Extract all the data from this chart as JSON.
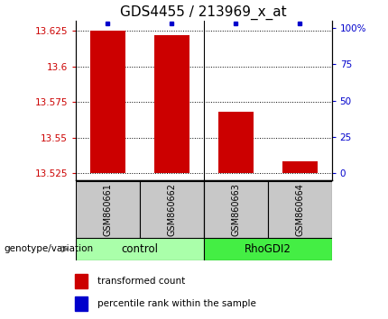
{
  "title": "GDS4455 / 213969_x_at",
  "samples": [
    "GSM860661",
    "GSM860662",
    "GSM860663",
    "GSM860664"
  ],
  "transformed_counts": [
    13.625,
    13.622,
    13.568,
    13.533
  ],
  "percentile_ranks": [
    100,
    100,
    100,
    100
  ],
  "ylim_left": [
    13.52,
    13.63
  ],
  "yticks_left": [
    13.525,
    13.55,
    13.575,
    13.6,
    13.625
  ],
  "yticks_right": [
    0,
    25,
    50,
    75,
    100
  ],
  "ytick_labels_right": [
    "0",
    "25",
    "50",
    "75",
    "100%"
  ],
  "groups": [
    {
      "name": "control",
      "samples": [
        0,
        1
      ],
      "color": "#aaffaa"
    },
    {
      "name": "RhoGDI2",
      "samples": [
        2,
        3
      ],
      "color": "#44ee44"
    }
  ],
  "bar_color": "#cc0000",
  "dot_color": "#0000cc",
  "bar_width": 0.55,
  "baseline": 13.525,
  "legend_items": [
    {
      "label": "transformed count",
      "color": "#cc0000"
    },
    {
      "label": "percentile rank within the sample",
      "color": "#0000cc"
    }
  ],
  "title_fontsize": 11,
  "tick_fontsize": 7.5,
  "sample_label_fontsize": 7,
  "group_label_fontsize": 8.5,
  "genotype_label": "genotype/variation",
  "background_color": "#ffffff"
}
